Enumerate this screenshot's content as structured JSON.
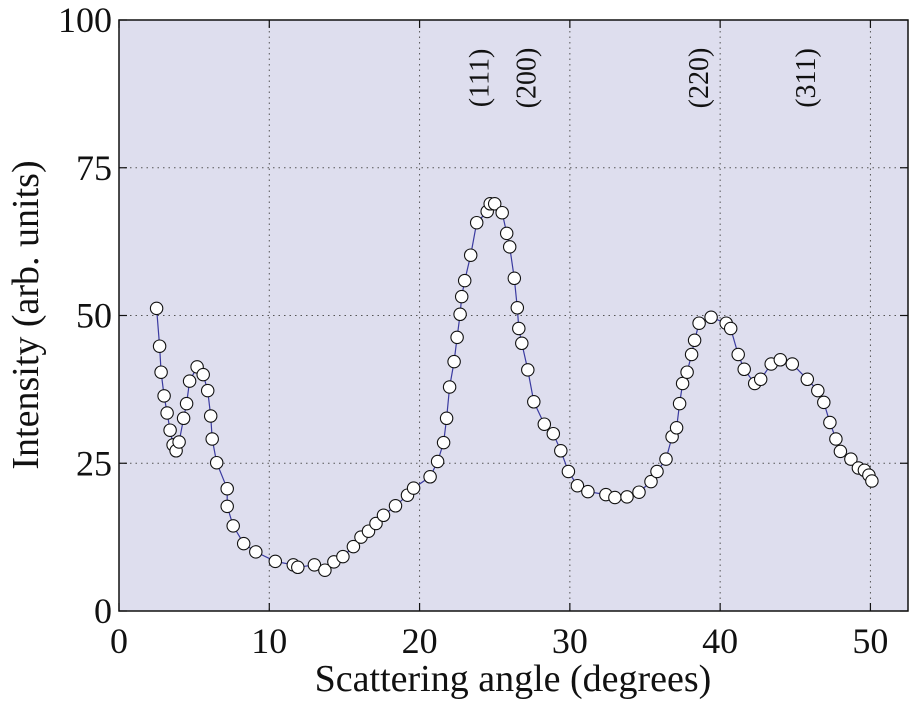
{
  "chart_data": {
    "type": "line",
    "xlabel": "Scattering angle (degrees)",
    "ylabel": "Intensity (arb. units)",
    "xlim": [
      0,
      52.5
    ],
    "ylim": [
      0,
      100
    ],
    "xticks": [
      0,
      10,
      20,
      30,
      40,
      50
    ],
    "yticks": [
      0,
      25,
      50,
      75,
      100
    ],
    "grid": "dotted",
    "background": "#dedeee",
    "line_color": "#3a3aa0",
    "marker": "open-circle",
    "peak_labels": [
      {
        "text": "(111)",
        "x": 24.6
      },
      {
        "text": "(200)",
        "x": 27.7
      },
      {
        "text": "(220)",
        "x": 39.2
      },
      {
        "text": "(311)",
        "x": 46.3
      }
    ],
    "series": [
      {
        "x": [
          2.5,
          2.7,
          2.8,
          3.0,
          3.2,
          3.4,
          3.6,
          3.8,
          4.0,
          4.3,
          4.5,
          4.7,
          5.2,
          5.6,
          5.9,
          6.1,
          6.2,
          6.5,
          7.2,
          7.2,
          7.6,
          8.3,
          9.1,
          10.4,
          11.6,
          11.9,
          13.0,
          13.7,
          14.3,
          14.9,
          15.6,
          16.1,
          16.6,
          17.1,
          17.6,
          18.4,
          19.2,
          19.6,
          20.7,
          21.2,
          21.6,
          21.8,
          22.0,
          22.3,
          22.5,
          22.7,
          22.8,
          23.0,
          23.4,
          23.8,
          24.5,
          24.7,
          25.0,
          25.5,
          25.8,
          26.0,
          26.3,
          26.5,
          26.6,
          26.8,
          27.2,
          27.6,
          28.3,
          28.9,
          29.4,
          29.9,
          30.5,
          31.2,
          32.4,
          33.0,
          33.8,
          34.6,
          35.4,
          35.8,
          36.4,
          36.8,
          37.1,
          37.3,
          37.5,
          37.8,
          38.1,
          38.3,
          38.6,
          39.4,
          40.4,
          40.7,
          41.2,
          41.6,
          42.3,
          42.7,
          43.4,
          44.0,
          44.8,
          45.8,
          46.5,
          46.9,
          47.3,
          47.7,
          48.0,
          48.7,
          49.2,
          49.6,
          49.9,
          50.1
        ],
        "y": [
          51.2,
          44.8,
          40.4,
          36.4,
          33.5,
          30.6,
          28.1,
          27.1,
          28.6,
          32.6,
          35.1,
          38.9,
          41.3,
          40.0,
          37.3,
          33.0,
          29.1,
          25.1,
          20.7,
          17.7,
          14.4,
          11.4,
          10.0,
          8.4,
          7.8,
          7.4,
          7.8,
          6.9,
          8.3,
          9.2,
          10.9,
          12.5,
          13.5,
          14.8,
          16.2,
          17.8,
          19.6,
          20.8,
          22.7,
          25.3,
          28.5,
          32.6,
          37.9,
          42.2,
          46.3,
          50.2,
          53.2,
          55.9,
          60.2,
          65.7,
          67.6,
          68.9,
          68.9,
          67.4,
          63.9,
          61.6,
          56.3,
          51.3,
          47.8,
          45.3,
          40.8,
          35.4,
          31.6,
          30.0,
          27.1,
          23.6,
          21.2,
          20.2,
          19.7,
          19.2,
          19.3,
          20.1,
          21.9,
          23.6,
          25.7,
          29.5,
          31.0,
          35.1,
          38.5,
          40.4,
          43.4,
          45.8,
          48.7,
          49.7,
          48.7,
          47.8,
          43.4,
          40.9,
          38.5,
          39.2,
          41.8,
          42.5,
          41.8,
          39.2,
          37.3,
          35.3,
          31.9,
          29.1,
          27.0,
          25.7,
          24.2,
          23.8,
          23.0,
          22.0
        ]
      }
    ]
  }
}
